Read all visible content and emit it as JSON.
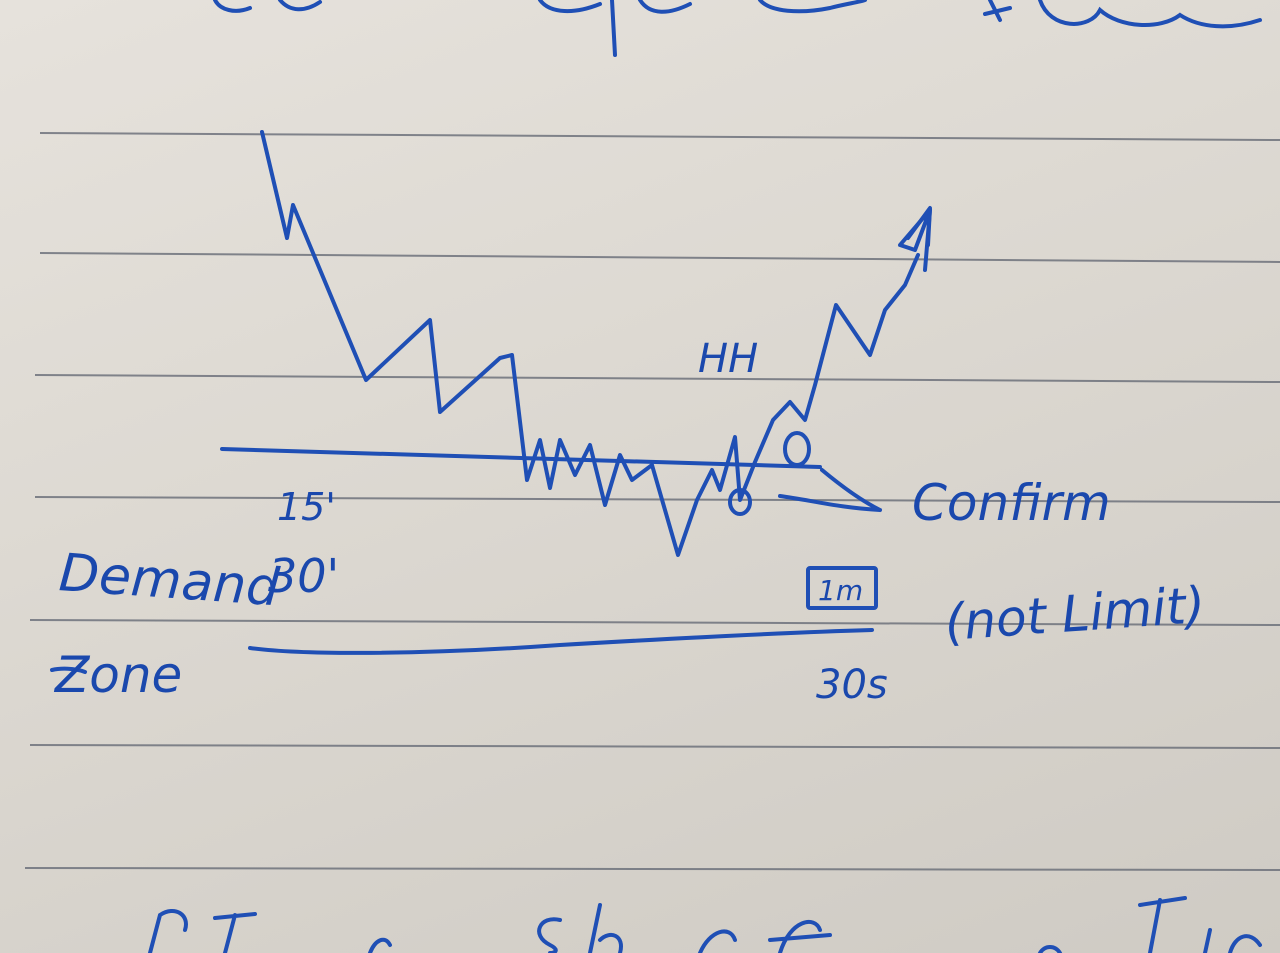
{
  "colors": {
    "paper": "#dedad3",
    "rule_line": "#5f6470",
    "ink": "#1f4fb5"
  },
  "labels": {
    "hh": "HH",
    "tf_15": "15'",
    "demand": "Demand",
    "tf_30": "30'",
    "zone": "Zone",
    "confirm": "Confirm",
    "not_limit": "(not Limit)",
    "tf_1m": "1m",
    "tf_30s": "30s"
  }
}
